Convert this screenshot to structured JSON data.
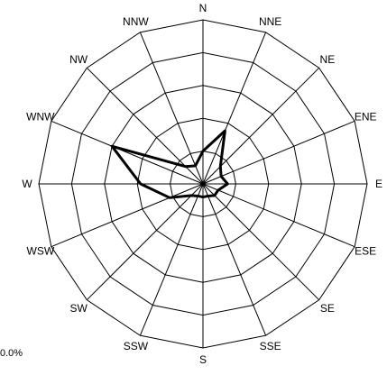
{
  "chart_data": {
    "type": "radar",
    "directions": [
      "N",
      "NNE",
      "NE",
      "ENE",
      "E",
      "ESE",
      "SE",
      "SSE",
      "S",
      "SSW",
      "SW",
      "WSW",
      "W",
      "WNW",
      "NW",
      "NNW"
    ],
    "series": [
      {
        "values": [
          2.0,
          3.5,
          1.5,
          1.2,
          1.5,
          1.0,
          1.0,
          0.8,
          0.8,
          0.8,
          1.0,
          2.2,
          3.8,
          6.0,
          1.5,
          1.2
        ]
      }
    ],
    "r_max": 10,
    "rings": 5,
    "scale_label": "0.0%",
    "grid": true,
    "line_color": "#000000"
  }
}
